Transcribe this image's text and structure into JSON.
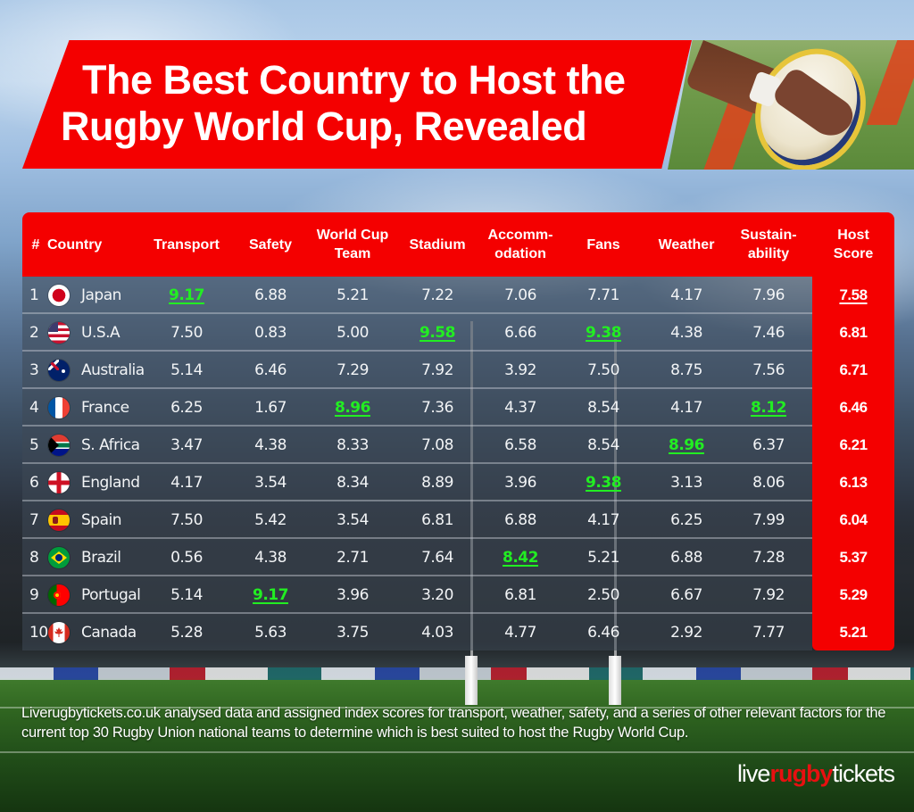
{
  "title": {
    "line1": "The Best Country to Host the",
    "line2": "Rugby World Cup, Revealed"
  },
  "colors": {
    "brand_red": "#f40000",
    "highlight_green": "#22ee22",
    "text_white": "#ffffff"
  },
  "table": {
    "headers": {
      "rank": "#",
      "country": "Country",
      "transport": "Transport",
      "safety": "Safety",
      "world_cup_team": "World Cup\nTeam",
      "stadium": "Stadium",
      "accommodation": "Accomm-\nodation",
      "fans": "Fans",
      "weather": "Weather",
      "sustainability": "Sustain-\nability",
      "host_score": "Host\nScore"
    },
    "rows": [
      {
        "rank": "1",
        "flag": "japan-flag-icon",
        "country": "Japan",
        "transport": "9.17",
        "safety": "6.88",
        "world_cup_team": "5.21",
        "stadium": "7.22",
        "accommodation": "7.06",
        "fans": "7.71",
        "weather": "4.17",
        "sustainability": "7.96",
        "host_score": "7.58"
      },
      {
        "rank": "2",
        "flag": "usa-flag-icon",
        "country": "U.S.A",
        "transport": "7.50",
        "safety": "0.83",
        "world_cup_team": "5.00",
        "stadium": "9.58",
        "accommodation": "6.66",
        "fans": "9.38",
        "weather": "4.38",
        "sustainability": "7.46",
        "host_score": "6.81"
      },
      {
        "rank": "3",
        "flag": "australia-flag-icon",
        "country": "Australia",
        "transport": "5.14",
        "safety": "6.46",
        "world_cup_team": "7.29",
        "stadium": "7.92",
        "accommodation": "3.92",
        "fans": "7.50",
        "weather": "8.75",
        "sustainability": "7.56",
        "host_score": "6.71"
      },
      {
        "rank": "4",
        "flag": "france-flag-icon",
        "country": "France",
        "transport": "6.25",
        "safety": "1.67",
        "world_cup_team": "8.96",
        "stadium": "7.36",
        "accommodation": "4.37",
        "fans": "8.54",
        "weather": "4.17",
        "sustainability": "8.12",
        "host_score": "6.46"
      },
      {
        "rank": "5",
        "flag": "south-africa-flag-icon",
        "country": "S. Africa",
        "transport": "3.47",
        "safety": "4.38",
        "world_cup_team": "8.33",
        "stadium": "7.08",
        "accommodation": "6.58",
        "fans": "8.54",
        "weather": "8.96",
        "sustainability": "6.37",
        "host_score": "6.21"
      },
      {
        "rank": "6",
        "flag": "england-flag-icon",
        "country": "England",
        "transport": "4.17",
        "safety": "3.54",
        "world_cup_team": "8.34",
        "stadium": "8.89",
        "accommodation": "3.96",
        "fans": "9.38",
        "weather": "3.13",
        "sustainability": "8.06",
        "host_score": "6.13"
      },
      {
        "rank": "7",
        "flag": "spain-flag-icon",
        "country": "Spain",
        "transport": "7.50",
        "safety": "5.42",
        "world_cup_team": "3.54",
        "stadium": "6.81",
        "accommodation": "6.88",
        "fans": "4.17",
        "weather": "6.25",
        "sustainability": "7.99",
        "host_score": "6.04"
      },
      {
        "rank": "8",
        "flag": "brazil-flag-icon",
        "country": "Brazil",
        "transport": "0.56",
        "safety": "4.38",
        "world_cup_team": "2.71",
        "stadium": "7.64",
        "accommodation": "8.42",
        "fans": "5.21",
        "weather": "6.88",
        "sustainability": "7.28",
        "host_score": "5.37"
      },
      {
        "rank": "9",
        "flag": "portugal-flag-icon",
        "country": "Portugal",
        "transport": "5.14",
        "safety": "9.17",
        "world_cup_team": "3.96",
        "stadium": "3.20",
        "accommodation": "6.81",
        "fans": "2.50",
        "weather": "6.67",
        "sustainability": "7.92",
        "host_score": "5.29"
      },
      {
        "rank": "10",
        "flag": "canada-flag-icon",
        "country": "Canada",
        "transport": "5.28",
        "safety": "5.63",
        "world_cup_team": "3.75",
        "stadium": "4.03",
        "accommodation": "4.77",
        "fans": "6.46",
        "weather": "2.92",
        "sustainability": "7.77",
        "host_score": "5.21"
      }
    ],
    "highlights": {
      "transport": "Japan",
      "safety": "Portugal",
      "world_cup_team": "France",
      "stadium": "U.S.A",
      "accommodation": "Brazil",
      "fans": [
        "U.S.A",
        "England"
      ],
      "weather": "S. Africa",
      "sustainability": "France",
      "host_score": "Japan"
    }
  },
  "chart_data": {
    "type": "table",
    "title": "The Best Country to Host the Rugby World Cup, Revealed",
    "columns": [
      "#",
      "Country",
      "Transport",
      "Safety",
      "World Cup Team",
      "Stadium",
      "Accommodation",
      "Fans",
      "Weather",
      "Sustainability",
      "Host Score"
    ],
    "rows": [
      [
        1,
        "Japan",
        9.17,
        6.88,
        5.21,
        7.22,
        7.06,
        7.71,
        4.17,
        7.96,
        7.58
      ],
      [
        2,
        "U.S.A",
        7.5,
        0.83,
        5.0,
        9.58,
        6.66,
        9.38,
        4.38,
        7.46,
        6.81
      ],
      [
        3,
        "Australia",
        5.14,
        6.46,
        7.29,
        7.92,
        3.92,
        7.5,
        8.75,
        7.56,
        6.71
      ],
      [
        4,
        "France",
        6.25,
        1.67,
        8.96,
        7.36,
        4.37,
        8.54,
        4.17,
        8.12,
        6.46
      ],
      [
        5,
        "S. Africa",
        3.47,
        4.38,
        8.33,
        7.08,
        6.58,
        8.54,
        8.96,
        6.37,
        6.21
      ],
      [
        6,
        "England",
        4.17,
        3.54,
        8.34,
        8.89,
        3.96,
        9.38,
        3.13,
        8.06,
        6.13
      ],
      [
        7,
        "Spain",
        7.5,
        5.42,
        3.54,
        6.81,
        6.88,
        4.17,
        6.25,
        7.99,
        6.04
      ],
      [
        8,
        "Brazil",
        0.56,
        4.38,
        2.71,
        7.64,
        8.42,
        5.21,
        6.88,
        7.28,
        5.37
      ],
      [
        9,
        "Portugal",
        5.14,
        9.17,
        3.96,
        3.2,
        6.81,
        2.5,
        6.67,
        7.92,
        5.29
      ],
      [
        10,
        "Canada",
        5.28,
        5.63,
        3.75,
        4.03,
        4.77,
        6.46,
        2.92,
        7.77,
        5.21
      ]
    ]
  },
  "footer": {
    "description": "Liverugbytickets.co.uk analysed data and assigned index scores for transport, weather, safety, and a series of other relevant factors for the current top 30 Rugby Union national teams to determine which is best suited to host the Rugby World Cup.",
    "logo": {
      "part1": "live",
      "part2": "rugby",
      "part3": "tickets"
    }
  }
}
